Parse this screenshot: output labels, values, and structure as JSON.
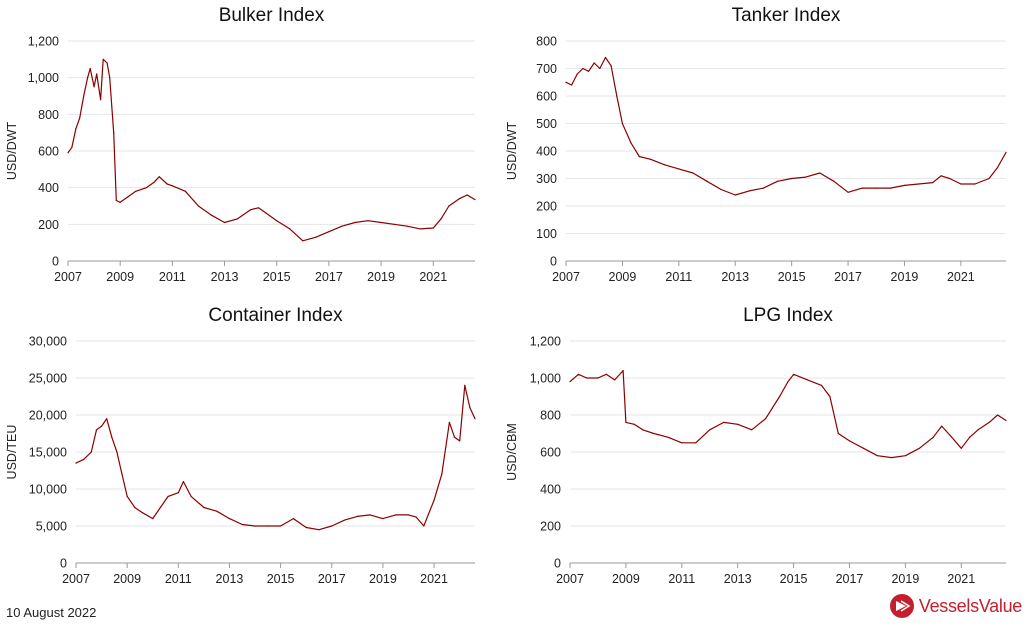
{
  "footer": {
    "date": "10 August 2022",
    "brand": "VesselsValue"
  },
  "colors": {
    "series": "#8b0000",
    "brand": "#c41f2c",
    "grid": "#e6e6e6"
  },
  "chart_data": [
    {
      "type": "line",
      "title": "Bulker Index",
      "xlabel": "",
      "ylabel": "USD/DWT",
      "xlim": [
        2007,
        2022.6
      ],
      "ylim": [
        0,
        1200
      ],
      "xticks": [
        2007,
        2009,
        2011,
        2013,
        2015,
        2017,
        2019,
        2021
      ],
      "yticks": [
        0,
        200,
        400,
        600,
        800,
        1000,
        1200
      ],
      "ytick_labels": [
        "0",
        "200",
        "400",
        "600",
        "800",
        "1,000",
        "1,200"
      ],
      "grid": true,
      "x": [
        2007.0,
        2007.15,
        2007.3,
        2007.45,
        2007.6,
        2007.75,
        2007.85,
        2008.0,
        2008.1,
        2008.25,
        2008.35,
        2008.5,
        2008.6,
        2008.75,
        2008.85,
        2009.0,
        2009.3,
        2009.6,
        2010.0,
        2010.3,
        2010.5,
        2010.8,
        2011.0,
        2011.5,
        2012.0,
        2012.5,
        2013.0,
        2013.5,
        2014.0,
        2014.3,
        2014.6,
        2015.0,
        2015.5,
        2016.0,
        2016.5,
        2017.0,
        2017.5,
        2018.0,
        2018.5,
        2019.0,
        2019.5,
        2020.0,
        2020.5,
        2021.0,
        2021.3,
        2021.6,
        2022.0,
        2022.3,
        2022.6
      ],
      "y": [
        590,
        620,
        720,
        780,
        900,
        1000,
        1050,
        950,
        1020,
        880,
        1100,
        1080,
        1000,
        700,
        330,
        320,
        350,
        380,
        400,
        430,
        460,
        420,
        410,
        380,
        300,
        250,
        210,
        230,
        280,
        290,
        260,
        220,
        175,
        110,
        130,
        160,
        190,
        210,
        220,
        210,
        200,
        190,
        175,
        180,
        230,
        300,
        340,
        360,
        335
      ]
    },
    {
      "type": "line",
      "title": "Tanker Index",
      "xlabel": "",
      "ylabel": "USD/DWT",
      "xlim": [
        2007,
        2022.6
      ],
      "ylim": [
        0,
        800
      ],
      "xticks": [
        2007,
        2009,
        2011,
        2013,
        2015,
        2017,
        2019,
        2021
      ],
      "yticks": [
        0,
        100,
        200,
        300,
        400,
        500,
        600,
        700,
        800
      ],
      "ytick_labels": [
        "0",
        "100",
        "200",
        "300",
        "400",
        "500",
        "600",
        "700",
        "800"
      ],
      "grid": true,
      "x": [
        2007.0,
        2007.2,
        2007.4,
        2007.6,
        2007.8,
        2008.0,
        2008.2,
        2008.4,
        2008.6,
        2008.8,
        2009.0,
        2009.3,
        2009.6,
        2010.0,
        2010.5,
        2011.0,
        2011.5,
        2012.0,
        2012.5,
        2013.0,
        2013.5,
        2014.0,
        2014.5,
        2015.0,
        2015.5,
        2016.0,
        2016.5,
        2017.0,
        2017.5,
        2018.0,
        2018.5,
        2019.0,
        2019.5,
        2020.0,
        2020.3,
        2020.6,
        2021.0,
        2021.5,
        2022.0,
        2022.3,
        2022.6
      ],
      "y": [
        650,
        640,
        680,
        700,
        690,
        720,
        700,
        740,
        710,
        600,
        500,
        430,
        380,
        370,
        350,
        335,
        320,
        290,
        260,
        240,
        255,
        265,
        290,
        300,
        305,
        320,
        290,
        250,
        265,
        265,
        265,
        275,
        280,
        285,
        310,
        300,
        280,
        280,
        300,
        340,
        395
      ]
    },
    {
      "type": "line",
      "title": "Container Index",
      "xlabel": "",
      "ylabel": "USD/TEU",
      "xlim": [
        2007,
        2022.6
      ],
      "ylim": [
        0,
        30000
      ],
      "xticks": [
        2007,
        2009,
        2011,
        2013,
        2015,
        2017,
        2019,
        2021
      ],
      "yticks": [
        0,
        5000,
        10000,
        15000,
        20000,
        25000,
        30000
      ],
      "ytick_labels": [
        "0",
        "5,000",
        "10,000",
        "15,000",
        "20,000",
        "25,000",
        "30,000"
      ],
      "grid": true,
      "x": [
        2007.0,
        2007.3,
        2007.6,
        2007.8,
        2008.0,
        2008.2,
        2008.4,
        2008.6,
        2008.8,
        2009.0,
        2009.3,
        2009.6,
        2010.0,
        2010.3,
        2010.6,
        2011.0,
        2011.2,
        2011.5,
        2012.0,
        2012.5,
        2013.0,
        2013.5,
        2014.0,
        2014.5,
        2015.0,
        2015.5,
        2016.0,
        2016.5,
        2017.0,
        2017.5,
        2018.0,
        2018.5,
        2019.0,
        2019.5,
        2020.0,
        2020.3,
        2020.6,
        2021.0,
        2021.3,
        2021.6,
        2021.8,
        2022.0,
        2022.2,
        2022.4,
        2022.6
      ],
      "y": [
        13500,
        14000,
        15000,
        18000,
        18500,
        19500,
        17000,
        15000,
        12000,
        9000,
        7500,
        6800,
        6000,
        7500,
        9000,
        9500,
        11000,
        9000,
        7500,
        7000,
        6000,
        5200,
        5000,
        5000,
        5000,
        6000,
        4800,
        4500,
        5000,
        5800,
        6300,
        6500,
        6000,
        6500,
        6500,
        6200,
        5000,
        8500,
        12000,
        19000,
        17000,
        16500,
        24000,
        21000,
        19500
      ]
    },
    {
      "type": "line",
      "title": "LPG Index",
      "xlabel": "",
      "ylabel": "USD/CBM",
      "xlim": [
        2007,
        2022.6
      ],
      "ylim": [
        0,
        1200
      ],
      "xticks": [
        2007,
        2009,
        2011,
        2013,
        2015,
        2017,
        2019,
        2021
      ],
      "yticks": [
        0,
        200,
        400,
        600,
        800,
        1000,
        1200
      ],
      "ytick_labels": [
        "0",
        "200",
        "400",
        "600",
        "800",
        "1,000",
        "1,200"
      ],
      "grid": true,
      "x": [
        2007.0,
        2007.3,
        2007.6,
        2008.0,
        2008.3,
        2008.6,
        2008.9,
        2009.0,
        2009.3,
        2009.6,
        2010.0,
        2010.5,
        2011.0,
        2011.5,
        2012.0,
        2012.5,
        2013.0,
        2013.5,
        2014.0,
        2014.5,
        2014.8,
        2015.0,
        2015.5,
        2016.0,
        2016.3,
        2016.6,
        2017.0,
        2017.5,
        2018.0,
        2018.5,
        2019.0,
        2019.5,
        2020.0,
        2020.3,
        2020.6,
        2021.0,
        2021.3,
        2021.6,
        2022.0,
        2022.3,
        2022.6
      ],
      "y": [
        980,
        1020,
        1000,
        1000,
        1020,
        990,
        1040,
        760,
        750,
        720,
        700,
        680,
        650,
        650,
        720,
        760,
        750,
        720,
        780,
        900,
        980,
        1020,
        990,
        960,
        900,
        700,
        660,
        620,
        580,
        570,
        580,
        620,
        680,
        740,
        690,
        620,
        680,
        720,
        760,
        800,
        770
      ]
    }
  ]
}
